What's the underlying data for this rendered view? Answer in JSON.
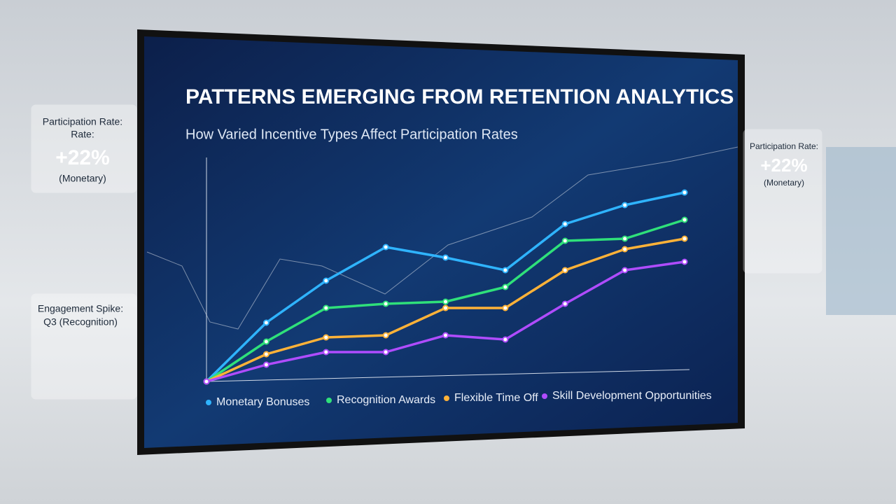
{
  "chart_data": {
    "type": "line",
    "title": "PATTERNS EMERGING FROM RETENTION ANALYTICS",
    "subtitle": "How Varied Incentive Types Affect Participation Rates",
    "categories": [
      null,
      null,
      null,
      null,
      null,
      null,
      null,
      null,
      null
    ],
    "ylim": [
      0,
      100
    ],
    "series": [
      {
        "name": "Monetary Bonuses",
        "color": "#2fb4ff",
        "values": [
          0,
          28,
          48,
          64,
          59,
          53,
          75,
          84,
          90
        ]
      },
      {
        "name": "Recognition Awards",
        "color": "#2fe07a",
        "values": [
          0,
          19,
          35,
          37,
          38,
          45,
          67,
          68,
          77
        ]
      },
      {
        "name": "Flexible Time Off",
        "color": "#ffb238",
        "values": [
          0,
          13,
          21,
          22,
          35,
          35,
          53,
          63,
          68
        ]
      },
      {
        "name": "Skill Development Opportunities",
        "color": "#b04cff",
        "values": [
          0,
          8,
          14,
          14,
          22,
          20,
          37,
          53,
          57
        ]
      }
    ]
  },
  "panels": [
    {
      "lines": [
        "Participation Rate:",
        "Rate:",
        "+22%",
        "(Monetary)"
      ]
    },
    {
      "lines": [
        "Engagement Spike:",
        "Q3 (Recognition)"
      ]
    },
    {
      "lines": [
        "Participation Rate:",
        "+22%",
        "(Monetary)"
      ]
    }
  ]
}
